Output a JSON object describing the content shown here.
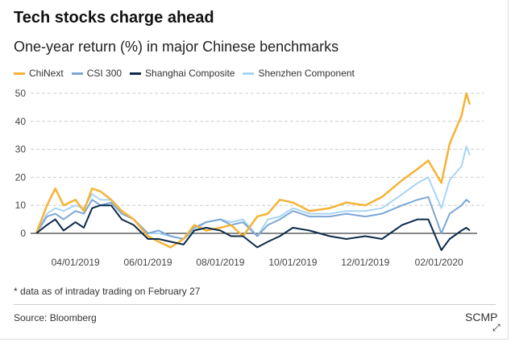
{
  "header": {
    "title": "Tech stocks charge ahead",
    "subtitle": "One-year return (%) in major Chinese benchmarks"
  },
  "footer": {
    "note": "* data as of intraday trading on February 27",
    "source": "Source: Bloomberg",
    "brand": "SCMP",
    "expand_icon": "expand-arrow-icon"
  },
  "chart_data": {
    "type": "line",
    "title": "Tech stocks charge ahead",
    "subtitle": "One-year return (%) in major Chinese benchmarks",
    "ylim": [
      -7,
      52
    ],
    "yticks": [
      0,
      10,
      20,
      30,
      40,
      50
    ],
    "xticks": [
      {
        "date": "2019-04-01",
        "label": "04/01/2019"
      },
      {
        "date": "2019-06-01",
        "label": "06/01/2019"
      },
      {
        "date": "2019-08-01",
        "label": "08/01/2019"
      },
      {
        "date": "2019-10-01",
        "label": "10/01/2019"
      },
      {
        "date": "2019-12-01",
        "label": "12/01/2019"
      },
      {
        "date": "2020-02-01",
        "label": "02/01/2020"
      }
    ],
    "grid": "horizontal dashed",
    "legend_position": "top-left",
    "x": [
      "2019-02-27",
      "2019-03-08",
      "2019-03-15",
      "2019-03-22",
      "2019-04-01",
      "2019-04-08",
      "2019-04-15",
      "2019-04-22",
      "2019-05-01",
      "2019-05-10",
      "2019-05-20",
      "2019-06-01",
      "2019-06-10",
      "2019-06-20",
      "2019-07-01",
      "2019-07-10",
      "2019-07-20",
      "2019-08-01",
      "2019-08-10",
      "2019-08-20",
      "2019-09-01",
      "2019-09-10",
      "2019-09-20",
      "2019-10-01",
      "2019-10-15",
      "2019-11-01",
      "2019-11-15",
      "2019-12-01",
      "2019-12-15",
      "2020-01-01",
      "2020-01-14",
      "2020-01-23",
      "2020-02-03",
      "2020-02-10",
      "2020-02-20",
      "2020-02-24",
      "2020-02-27"
    ],
    "series": [
      {
        "name": "ChiNext",
        "color": "#f5b335",
        "values": [
          0,
          10,
          16,
          10,
          12,
          8,
          16,
          15,
          12,
          8,
          5,
          -1,
          -3,
          -5,
          -2,
          3,
          1,
          2,
          3,
          -1,
          6,
          7,
          12,
          11,
          8,
          9,
          11,
          10,
          13,
          19,
          23,
          26,
          18,
          32,
          42,
          50,
          46
        ]
      },
      {
        "name": "CSI 300",
        "color": "#7ba7d6",
        "values": [
          0,
          6,
          7,
          5,
          8,
          7,
          12,
          10,
          11,
          7,
          5,
          0,
          1,
          -1,
          -2,
          2,
          4,
          5,
          3,
          4,
          -1,
          3,
          5,
          8,
          6,
          6,
          7,
          6,
          7,
          10,
          12,
          13,
          0,
          7,
          10,
          12,
          11
        ]
      },
      {
        "name": "Shanghai Composite",
        "color": "#0b2a4a",
        "values": [
          0,
          3,
          5,
          1,
          4,
          2,
          9,
          10,
          10,
          5,
          3,
          -2,
          -2,
          -3,
          -4,
          1,
          2,
          1,
          -1,
          -1,
          -5,
          -3,
          -1,
          2,
          1,
          -1,
          -2,
          -1,
          -2,
          3,
          5,
          5,
          -6,
          -2,
          1,
          2,
          1
        ]
      },
      {
        "name": "Shenzhen Component",
        "color": "#a8d4f5",
        "values": [
          0,
          7,
          9,
          8,
          10,
          9,
          14,
          12,
          12,
          8,
          5,
          0,
          0,
          -1,
          -2,
          1,
          4,
          5,
          4,
          5,
          -1,
          5,
          6,
          9,
          7,
          7,
          8,
          8,
          9,
          14,
          18,
          20,
          9,
          19,
          24,
          31,
          28
        ]
      }
    ]
  }
}
